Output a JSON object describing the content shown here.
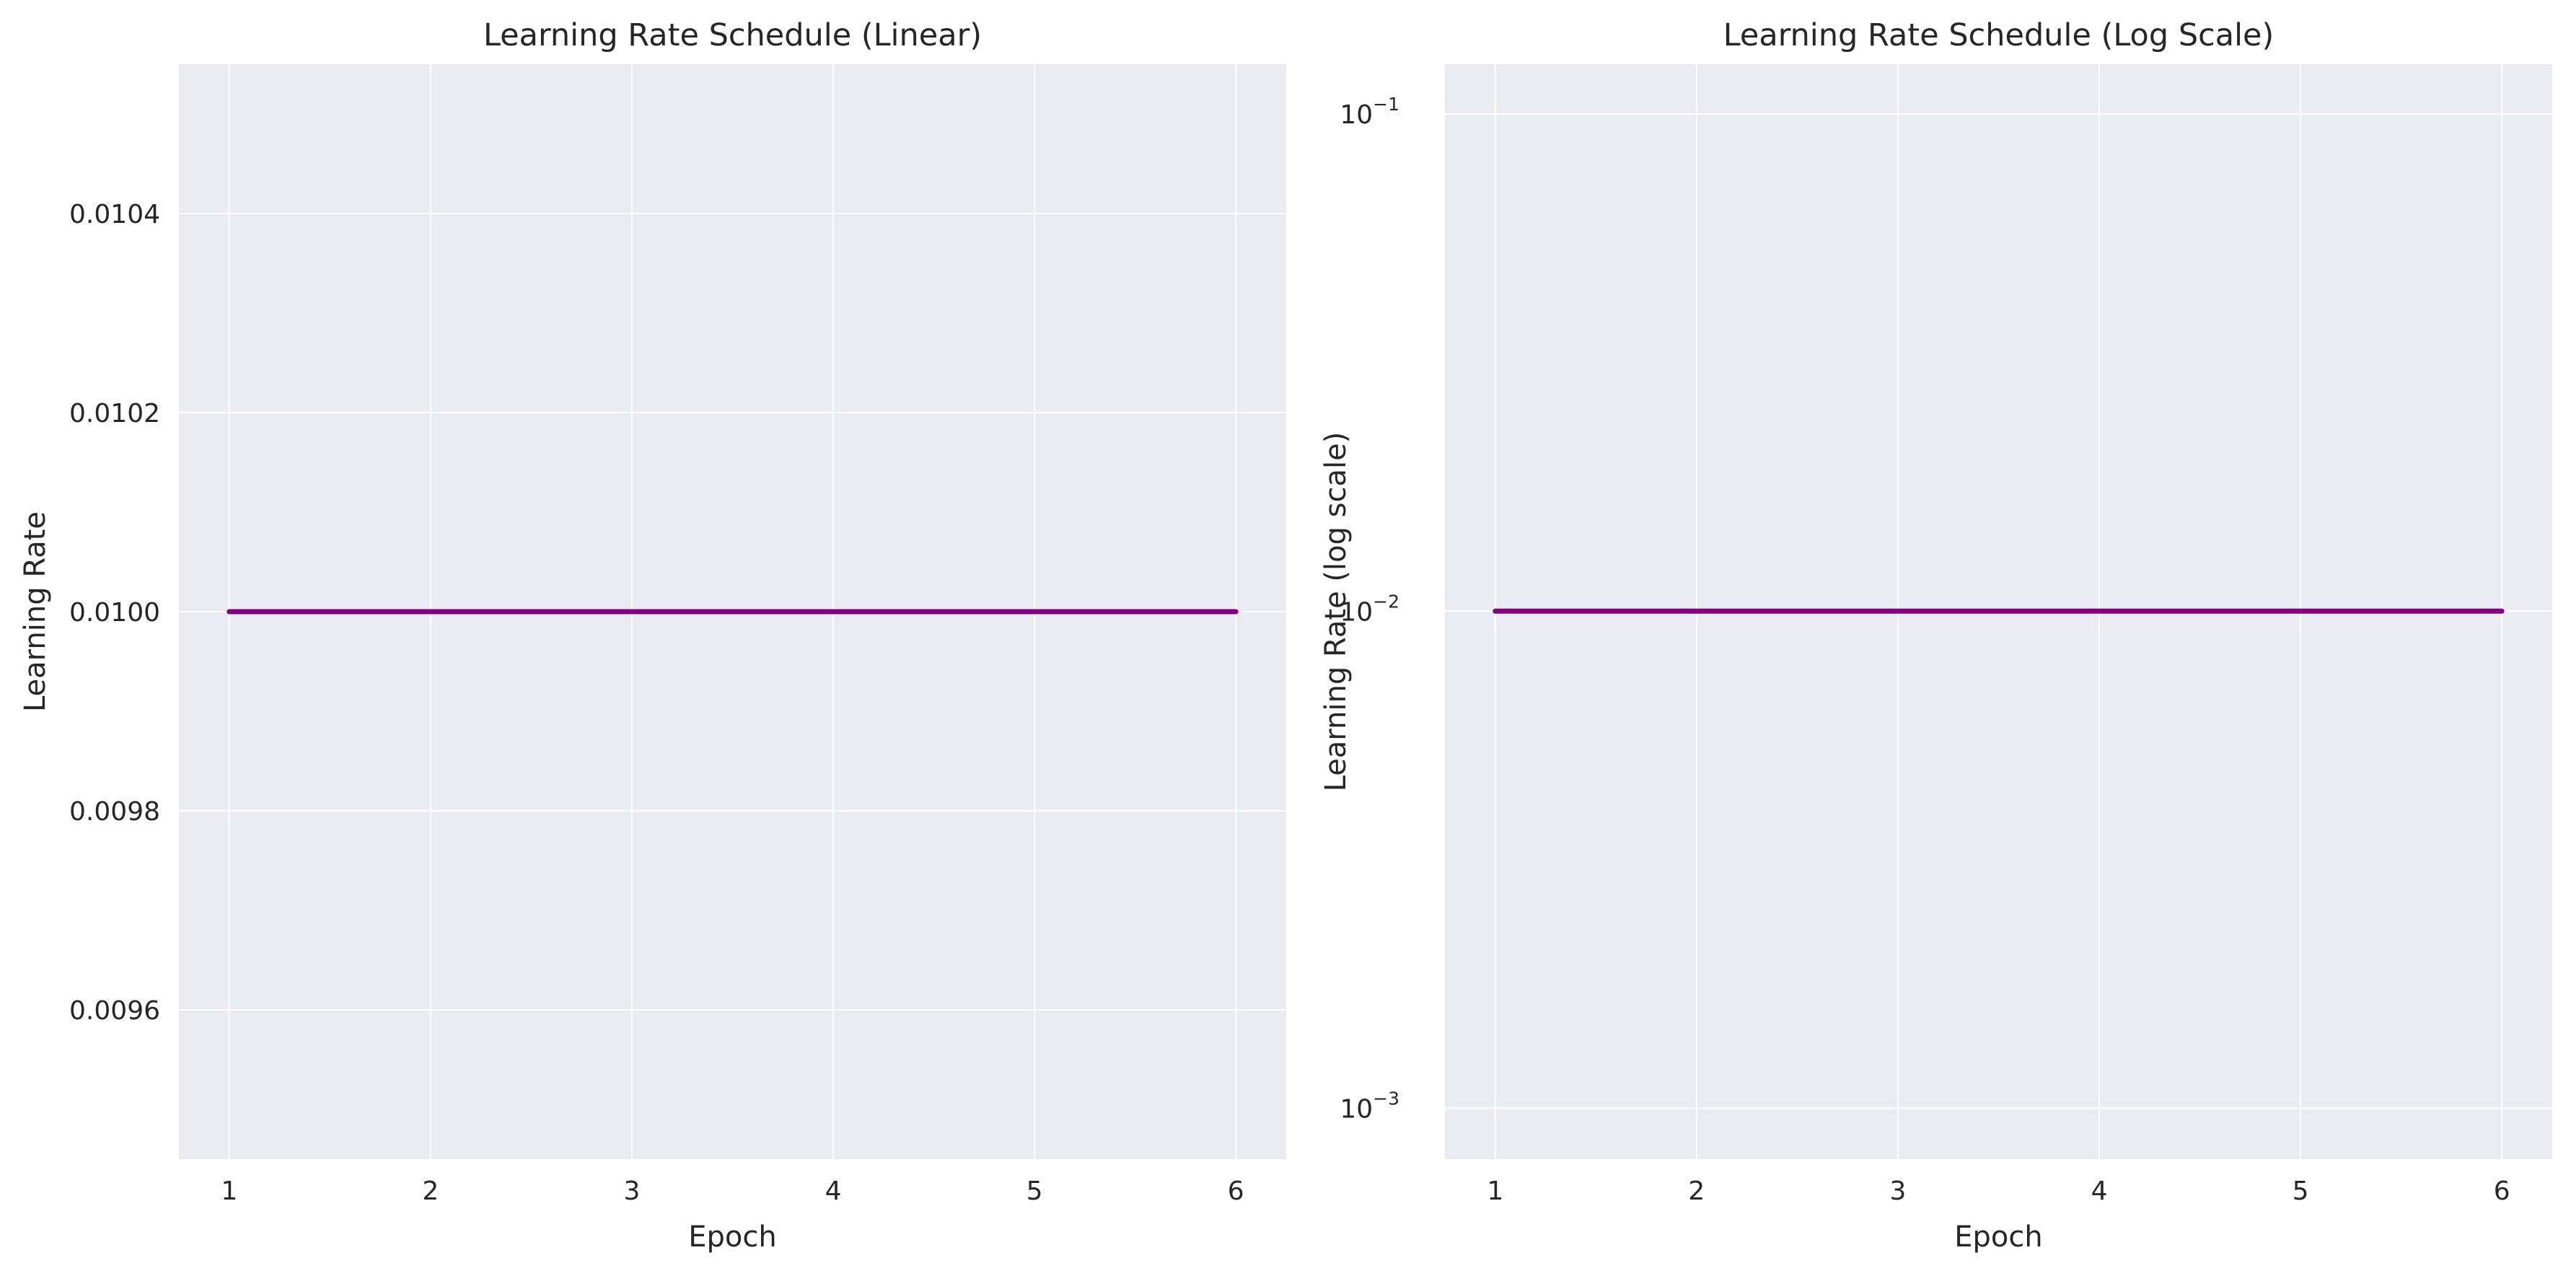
{
  "chart_data": [
    {
      "type": "line",
      "title": "Learning Rate Schedule (Linear)",
      "xlabel": "Epoch",
      "ylabel": "Learning Rate",
      "x": [
        1,
        2,
        3,
        4,
        5,
        6
      ],
      "series": [
        {
          "values": [
            0.01,
            0.01,
            0.01,
            0.01,
            0.01,
            0.01
          ],
          "color": "#800080"
        }
      ],
      "xlim": [
        0.75,
        6.25
      ],
      "ylim": [
        0.00945,
        0.01055
      ],
      "yscale": "linear",
      "xticks": [
        1,
        2,
        3,
        4,
        5,
        6
      ],
      "yticks": [
        0.0096,
        0.0098,
        0.01,
        0.0102,
        0.0104
      ],
      "ytick_labels": [
        "0.0096",
        "0.0098",
        "0.0100",
        "0.0102",
        "0.0104"
      ],
      "grid": true
    },
    {
      "type": "line",
      "title": "Learning Rate Schedule (Log Scale)",
      "xlabel": "Epoch",
      "ylabel": "Learning Rate (log scale)",
      "x": [
        1,
        2,
        3,
        4,
        5,
        6
      ],
      "series": [
        {
          "values": [
            0.01,
            0.01,
            0.01,
            0.01,
            0.01,
            0.01
          ],
          "color": "#800080"
        }
      ],
      "xlim": [
        0.75,
        6.25
      ],
      "ylim": [
        0.00079,
        0.126
      ],
      "yscale": "log",
      "xticks": [
        1,
        2,
        3,
        4,
        5,
        6
      ],
      "yticks": [
        0.001,
        0.01,
        0.1
      ],
      "ytick_labels": [
        {
          "base": "10",
          "exp": "−3"
        },
        {
          "base": "10",
          "exp": "−2"
        },
        {
          "base": "10",
          "exp": "−1"
        }
      ],
      "grid": true
    }
  ]
}
